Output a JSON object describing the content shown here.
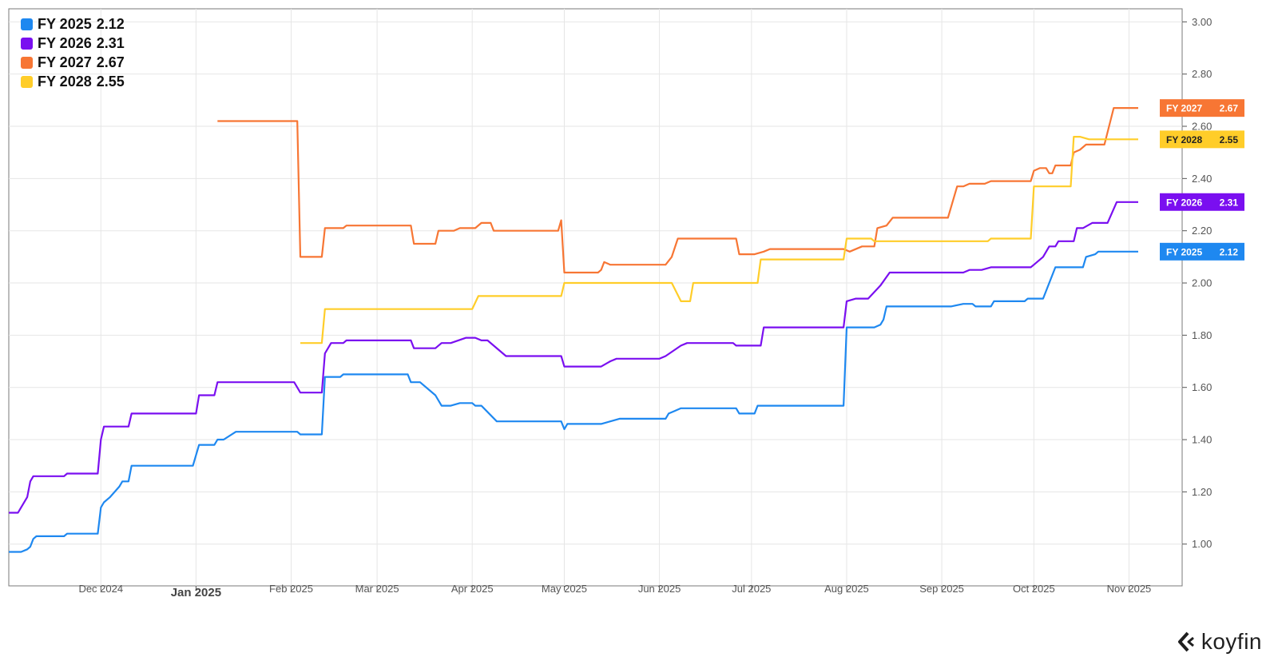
{
  "chart_data": {
    "type": "line",
    "title": "",
    "xlabel": "",
    "ylabel": "",
    "x_axis": {
      "start": "2024-11-01",
      "end": "2025-11-08",
      "ticks": [
        {
          "label": "Dec 2024",
          "date": "2024-12-01",
          "major": false
        },
        {
          "label": "Jan 2025",
          "date": "2025-01-01",
          "major": true
        },
        {
          "label": "Feb 2025",
          "date": "2025-02-01",
          "major": false
        },
        {
          "label": "Mar 2025",
          "date": "2025-03-01",
          "major": false
        },
        {
          "label": "Apr 2025",
          "date": "2025-04-01",
          "major": false
        },
        {
          "label": "May 2025",
          "date": "2025-05-01",
          "major": false
        },
        {
          "label": "Jun 2025",
          "date": "2025-06-01",
          "major": false
        },
        {
          "label": "Jul 2025",
          "date": "2025-07-01",
          "major": false
        },
        {
          "label": "Aug 2025",
          "date": "2025-08-01",
          "major": false
        },
        {
          "label": "Sep 2025",
          "date": "2025-09-01",
          "major": false
        },
        {
          "label": "Oct 2025",
          "date": "2025-10-01",
          "major": false
        },
        {
          "label": "Nov 2025",
          "date": "2025-11-01",
          "major": false
        }
      ]
    },
    "y_axis": {
      "position": "right",
      "ylim": [
        0.84,
        3.05
      ],
      "ticks": [
        "1.00",
        "1.20",
        "1.40",
        "1.60",
        "1.80",
        "2.00",
        "2.20",
        "2.40",
        "2.60",
        "2.80",
        "3.00"
      ]
    },
    "grid": true,
    "legend_position": "top-left",
    "series": [
      {
        "name": "FY 2025",
        "last_value": "2.12",
        "color": "#1e88f0",
        "points": [
          [
            "2024-11-01",
            0.97
          ],
          [
            "2024-11-05",
            0.97
          ],
          [
            "2024-11-07",
            0.98
          ],
          [
            "2024-11-08",
            0.99
          ],
          [
            "2024-11-09",
            1.02
          ],
          [
            "2024-11-10",
            1.03
          ],
          [
            "2024-11-19",
            1.03
          ],
          [
            "2024-11-20",
            1.04
          ],
          [
            "2024-11-30",
            1.04
          ],
          [
            "2024-12-01",
            1.14
          ],
          [
            "2024-12-02",
            1.16
          ],
          [
            "2024-12-04",
            1.18
          ],
          [
            "2024-12-07",
            1.22
          ],
          [
            "2024-12-08",
            1.24
          ],
          [
            "2024-12-10",
            1.24
          ],
          [
            "2024-12-11",
            1.3
          ],
          [
            "2024-12-31",
            1.3
          ],
          [
            "2025-01-02",
            1.38
          ],
          [
            "2025-01-07",
            1.38
          ],
          [
            "2025-01-08",
            1.4
          ],
          [
            "2025-01-10",
            1.4
          ],
          [
            "2025-01-14",
            1.43
          ],
          [
            "2025-02-03",
            1.43
          ],
          [
            "2025-02-04",
            1.42
          ],
          [
            "2025-02-11",
            1.42
          ],
          [
            "2025-02-12",
            1.64
          ],
          [
            "2025-02-17",
            1.64
          ],
          [
            "2025-02-18",
            1.65
          ],
          [
            "2025-03-11",
            1.65
          ],
          [
            "2025-03-12",
            1.62
          ],
          [
            "2025-03-15",
            1.62
          ],
          [
            "2025-03-20",
            1.57
          ],
          [
            "2025-03-22",
            1.53
          ],
          [
            "2025-03-25",
            1.53
          ],
          [
            "2025-03-28",
            1.54
          ],
          [
            "2025-04-01",
            1.54
          ],
          [
            "2025-04-02",
            1.53
          ],
          [
            "2025-04-04",
            1.53
          ],
          [
            "2025-04-09",
            1.47
          ],
          [
            "2025-04-30",
            1.47
          ],
          [
            "2025-05-01",
            1.44
          ],
          [
            "2025-05-02",
            1.46
          ],
          [
            "2025-05-13",
            1.46
          ],
          [
            "2025-05-16",
            1.47
          ],
          [
            "2025-05-19",
            1.48
          ],
          [
            "2025-06-03",
            1.48
          ],
          [
            "2025-06-04",
            1.5
          ],
          [
            "2025-06-06",
            1.51
          ],
          [
            "2025-06-08",
            1.52
          ],
          [
            "2025-06-26",
            1.52
          ],
          [
            "2025-06-27",
            1.5
          ],
          [
            "2025-07-02",
            1.5
          ],
          [
            "2025-07-03",
            1.53
          ],
          [
            "2025-07-31",
            1.53
          ],
          [
            "2025-08-01",
            1.83
          ],
          [
            "2025-08-10",
            1.83
          ],
          [
            "2025-08-12",
            1.84
          ],
          [
            "2025-08-13",
            1.86
          ],
          [
            "2025-08-14",
            1.91
          ],
          [
            "2025-09-04",
            1.91
          ],
          [
            "2025-09-08",
            1.92
          ],
          [
            "2025-09-11",
            1.92
          ],
          [
            "2025-09-12",
            1.91
          ],
          [
            "2025-09-17",
            1.91
          ],
          [
            "2025-09-18",
            1.93
          ],
          [
            "2025-09-28",
            1.93
          ],
          [
            "2025-09-29",
            1.94
          ],
          [
            "2025-10-01",
            1.94
          ],
          [
            "2025-10-04",
            1.94
          ],
          [
            "2025-10-08",
            2.06
          ],
          [
            "2025-10-17",
            2.06
          ],
          [
            "2025-10-18",
            2.1
          ],
          [
            "2025-10-21",
            2.11
          ],
          [
            "2025-10-22",
            2.12
          ],
          [
            "2025-11-04",
            2.12
          ]
        ]
      },
      {
        "name": "FY 2026",
        "last_value": "2.31",
        "color": "#7a0ff0",
        "points": [
          [
            "2024-11-01",
            1.12
          ],
          [
            "2024-11-04",
            1.12
          ],
          [
            "2024-11-07",
            1.18
          ],
          [
            "2024-11-08",
            1.24
          ],
          [
            "2024-11-09",
            1.26
          ],
          [
            "2024-11-19",
            1.26
          ],
          [
            "2024-11-20",
            1.27
          ],
          [
            "2024-11-30",
            1.27
          ],
          [
            "2024-12-01",
            1.4
          ],
          [
            "2024-12-02",
            1.45
          ],
          [
            "2024-12-10",
            1.45
          ],
          [
            "2024-12-11",
            1.5
          ],
          [
            "2025-01-01",
            1.5
          ],
          [
            "2025-01-02",
            1.57
          ],
          [
            "2025-01-07",
            1.57
          ],
          [
            "2025-01-08",
            1.62
          ],
          [
            "2025-02-02",
            1.62
          ],
          [
            "2025-02-04",
            1.58
          ],
          [
            "2025-02-11",
            1.58
          ],
          [
            "2025-02-12",
            1.73
          ],
          [
            "2025-02-14",
            1.77
          ],
          [
            "2025-02-18",
            1.77
          ],
          [
            "2025-02-19",
            1.78
          ],
          [
            "2025-03-12",
            1.78
          ],
          [
            "2025-03-13",
            1.75
          ],
          [
            "2025-03-20",
            1.75
          ],
          [
            "2025-03-22",
            1.77
          ],
          [
            "2025-03-25",
            1.77
          ],
          [
            "2025-03-30",
            1.79
          ],
          [
            "2025-04-02",
            1.79
          ],
          [
            "2025-04-04",
            1.78
          ],
          [
            "2025-04-06",
            1.78
          ],
          [
            "2025-04-12",
            1.72
          ],
          [
            "2025-04-30",
            1.72
          ],
          [
            "2025-05-01",
            1.68
          ],
          [
            "2025-05-13",
            1.68
          ],
          [
            "2025-05-16",
            1.7
          ],
          [
            "2025-05-18",
            1.71
          ],
          [
            "2025-06-01",
            1.71
          ],
          [
            "2025-06-03",
            1.72
          ],
          [
            "2025-06-08",
            1.76
          ],
          [
            "2025-06-10",
            1.77
          ],
          [
            "2025-06-25",
            1.77
          ],
          [
            "2025-06-26",
            1.76
          ],
          [
            "2025-06-30",
            1.76
          ],
          [
            "2025-07-04",
            1.76
          ],
          [
            "2025-07-05",
            1.83
          ],
          [
            "2025-07-31",
            1.83
          ],
          [
            "2025-08-01",
            1.93
          ],
          [
            "2025-08-04",
            1.94
          ],
          [
            "2025-08-08",
            1.94
          ],
          [
            "2025-08-12",
            1.99
          ],
          [
            "2025-08-15",
            2.04
          ],
          [
            "2025-09-08",
            2.04
          ],
          [
            "2025-09-10",
            2.05
          ],
          [
            "2025-09-14",
            2.05
          ],
          [
            "2025-09-17",
            2.06
          ],
          [
            "2025-09-30",
            2.06
          ],
          [
            "2025-10-01",
            2.07
          ],
          [
            "2025-10-04",
            2.1
          ],
          [
            "2025-10-06",
            2.14
          ],
          [
            "2025-10-08",
            2.14
          ],
          [
            "2025-10-09",
            2.16
          ],
          [
            "2025-10-14",
            2.16
          ],
          [
            "2025-10-15",
            2.21
          ],
          [
            "2025-10-17",
            2.21
          ],
          [
            "2025-10-20",
            2.23
          ],
          [
            "2025-10-25",
            2.23
          ],
          [
            "2025-10-28",
            2.31
          ],
          [
            "2025-11-04",
            2.31
          ]
        ]
      },
      {
        "name": "FY 2027",
        "last_value": "2.67",
        "color": "#f77634",
        "points": [
          [
            "2025-01-08",
            2.62
          ],
          [
            "2025-02-03",
            2.62
          ],
          [
            "2025-02-04",
            2.1
          ],
          [
            "2025-02-11",
            2.1
          ],
          [
            "2025-02-12",
            2.21
          ],
          [
            "2025-02-18",
            2.21
          ],
          [
            "2025-02-19",
            2.22
          ],
          [
            "2025-03-12",
            2.22
          ],
          [
            "2025-03-13",
            2.15
          ],
          [
            "2025-03-20",
            2.15
          ],
          [
            "2025-03-21",
            2.2
          ],
          [
            "2025-03-26",
            2.2
          ],
          [
            "2025-03-28",
            2.21
          ],
          [
            "2025-04-02",
            2.21
          ],
          [
            "2025-04-04",
            2.23
          ],
          [
            "2025-04-07",
            2.23
          ],
          [
            "2025-04-08",
            2.2
          ],
          [
            "2025-04-29",
            2.2
          ],
          [
            "2025-04-30",
            2.24
          ],
          [
            "2025-05-01",
            2.04
          ],
          [
            "2025-05-12",
            2.04
          ],
          [
            "2025-05-13",
            2.05
          ],
          [
            "2025-05-14",
            2.08
          ],
          [
            "2025-05-16",
            2.07
          ],
          [
            "2025-06-03",
            2.07
          ],
          [
            "2025-06-05",
            2.1
          ],
          [
            "2025-06-07",
            2.17
          ],
          [
            "2025-06-08",
            2.17
          ],
          [
            "2025-06-26",
            2.17
          ],
          [
            "2025-06-27",
            2.11
          ],
          [
            "2025-07-02",
            2.11
          ],
          [
            "2025-07-05",
            2.12
          ],
          [
            "2025-07-07",
            2.13
          ],
          [
            "2025-07-31",
            2.13
          ],
          [
            "2025-08-02",
            2.12
          ],
          [
            "2025-08-06",
            2.14
          ],
          [
            "2025-08-10",
            2.14
          ],
          [
            "2025-08-11",
            2.21
          ],
          [
            "2025-08-14",
            2.22
          ],
          [
            "2025-08-16",
            2.25
          ],
          [
            "2025-09-03",
            2.25
          ],
          [
            "2025-09-06",
            2.37
          ],
          [
            "2025-09-08",
            2.37
          ],
          [
            "2025-09-10",
            2.38
          ],
          [
            "2025-09-15",
            2.38
          ],
          [
            "2025-09-17",
            2.39
          ],
          [
            "2025-09-30",
            2.39
          ],
          [
            "2025-10-01",
            2.43
          ],
          [
            "2025-10-03",
            2.44
          ],
          [
            "2025-10-05",
            2.44
          ],
          [
            "2025-10-06",
            2.42
          ],
          [
            "2025-10-07",
            2.42
          ],
          [
            "2025-10-08",
            2.45
          ],
          [
            "2025-10-13",
            2.45
          ],
          [
            "2025-10-14",
            2.5
          ],
          [
            "2025-10-16",
            2.51
          ],
          [
            "2025-10-18",
            2.53
          ],
          [
            "2025-10-24",
            2.53
          ],
          [
            "2025-10-27",
            2.67
          ],
          [
            "2025-11-04",
            2.67
          ]
        ]
      },
      {
        "name": "FY 2028",
        "last_value": "2.55",
        "color": "#ffcd29",
        "points": [
          [
            "2025-02-04",
            1.77
          ],
          [
            "2025-02-11",
            1.77
          ],
          [
            "2025-02-12",
            1.9
          ],
          [
            "2025-04-01",
            1.9
          ],
          [
            "2025-04-03",
            1.95
          ],
          [
            "2025-04-30",
            1.95
          ],
          [
            "2025-05-01",
            2.0
          ],
          [
            "2025-06-05",
            2.0
          ],
          [
            "2025-06-08",
            1.93
          ],
          [
            "2025-06-11",
            1.93
          ],
          [
            "2025-06-12",
            2.0
          ],
          [
            "2025-07-03",
            2.0
          ],
          [
            "2025-07-04",
            2.09
          ],
          [
            "2025-07-31",
            2.09
          ],
          [
            "2025-08-01",
            2.17
          ],
          [
            "2025-08-09",
            2.17
          ],
          [
            "2025-08-10",
            2.16
          ],
          [
            "2025-09-16",
            2.16
          ],
          [
            "2025-09-17",
            2.17
          ],
          [
            "2025-09-30",
            2.17
          ],
          [
            "2025-10-01",
            2.37
          ],
          [
            "2025-10-13",
            2.37
          ],
          [
            "2025-10-14",
            2.56
          ],
          [
            "2025-10-16",
            2.56
          ],
          [
            "2025-10-19",
            2.55
          ],
          [
            "2025-11-04",
            2.55
          ]
        ]
      }
    ]
  },
  "brand": {
    "name": "koyfin",
    "icon": "koyfin-logo-icon"
  }
}
